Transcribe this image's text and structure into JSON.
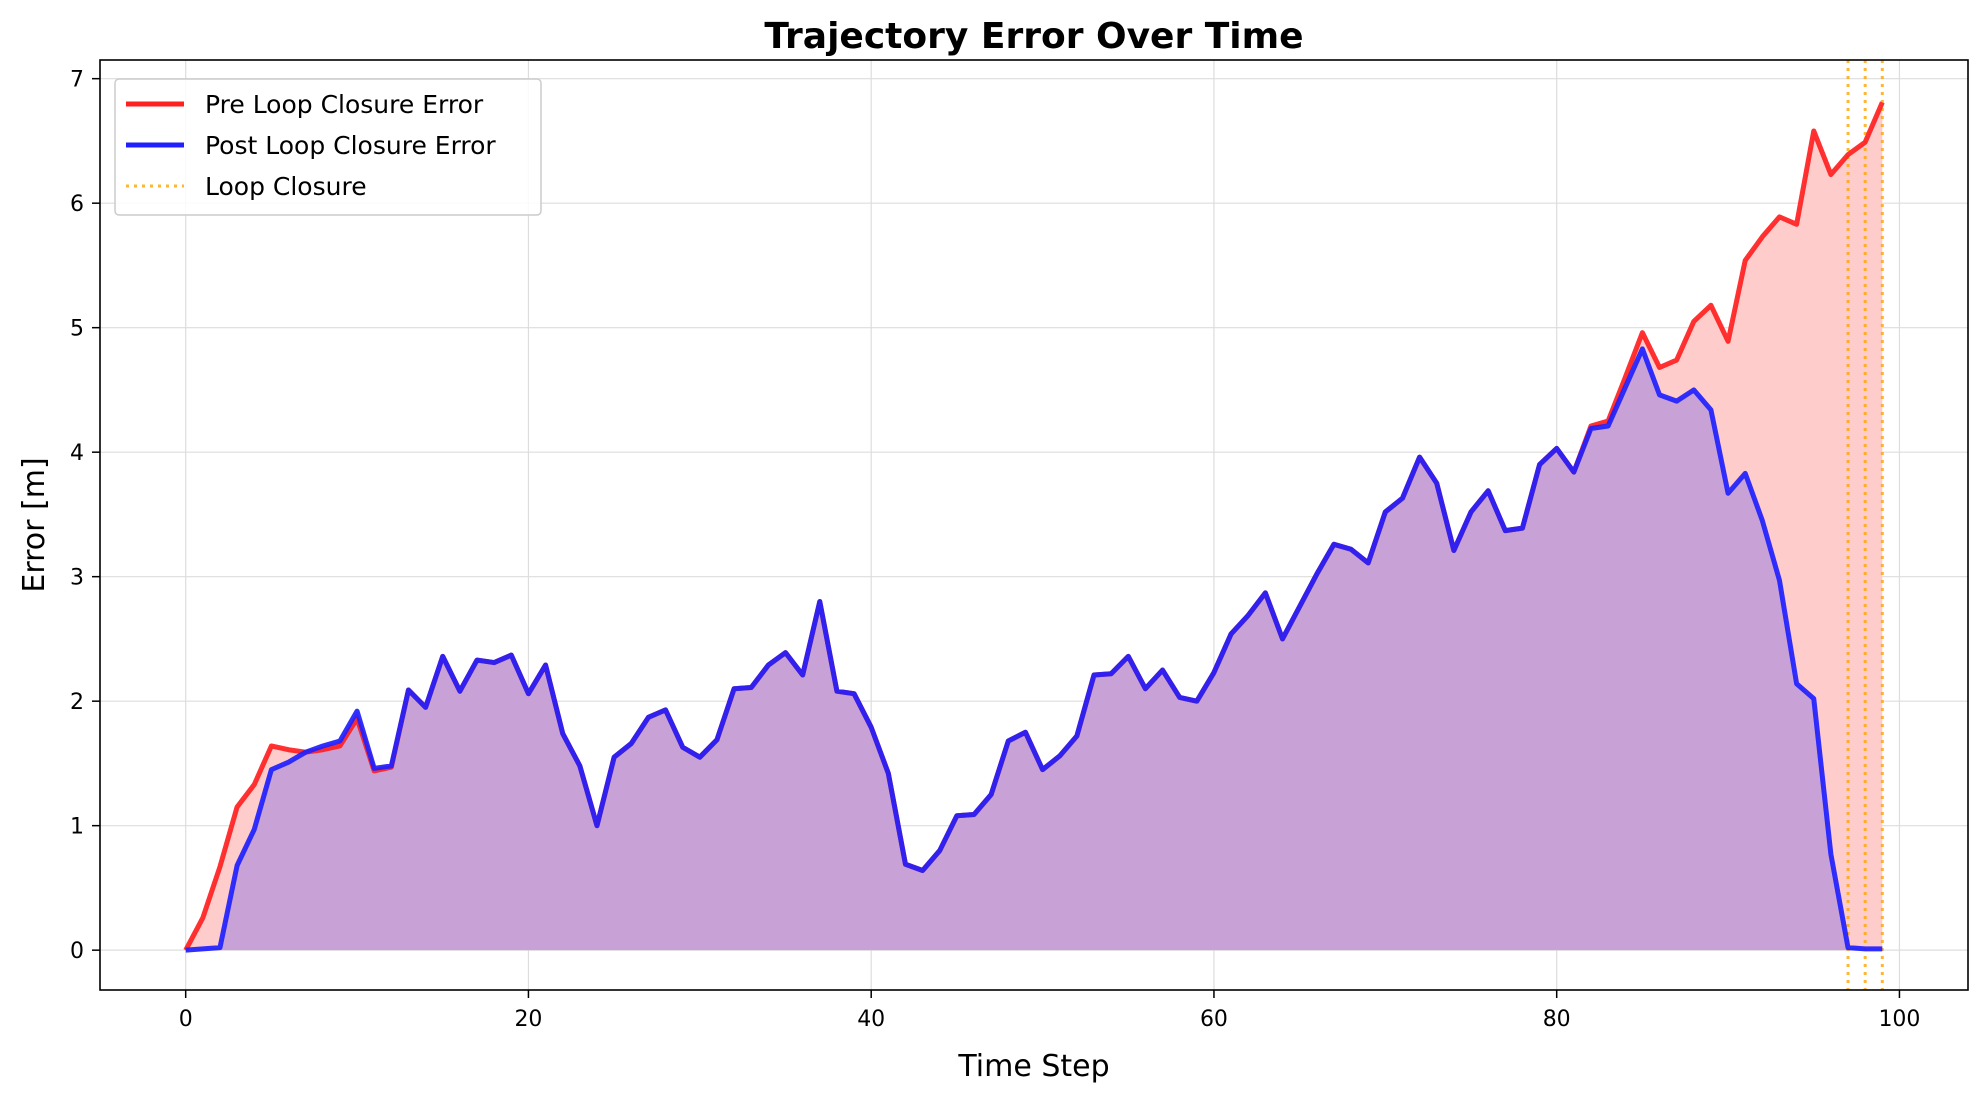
{
  "chart_data": {
    "type": "line",
    "title": "Trajectory Error Over Time",
    "xlabel": "Time Step",
    "ylabel": "Error [m]",
    "xlim": [
      -5,
      104
    ],
    "ylim": [
      -0.32,
      7.15
    ],
    "xticks": [
      0,
      20,
      40,
      60,
      80,
      100
    ],
    "yticks": [
      0,
      1,
      2,
      3,
      4,
      5,
      6,
      7
    ],
    "grid": true,
    "legend_position": "top-left",
    "x": [
      0,
      1,
      2,
      3,
      4,
      5,
      6,
      7,
      8,
      9,
      10,
      11,
      12,
      13,
      14,
      15,
      16,
      17,
      18,
      19,
      20,
      21,
      22,
      23,
      24,
      25,
      26,
      27,
      28,
      29,
      30,
      31,
      32,
      33,
      34,
      35,
      36,
      37,
      38,
      39,
      40,
      41,
      42,
      43,
      44,
      45,
      46,
      47,
      48,
      49,
      50,
      51,
      52,
      53,
      54,
      55,
      56,
      57,
      58,
      59,
      60,
      61,
      62,
      63,
      64,
      65,
      66,
      67,
      68,
      69,
      70,
      71,
      72,
      73,
      74,
      75,
      76,
      77,
      78,
      79,
      80,
      81,
      82,
      83,
      84,
      85,
      86,
      87,
      88,
      89,
      90,
      91,
      92,
      93,
      94,
      95,
      96,
      97,
      98,
      99
    ],
    "series": [
      {
        "name": "Pre Loop Closure Error",
        "color": "#ff2020",
        "fill": "#ffcccc",
        "values": [
          0.0,
          0.26,
          0.67,
          1.15,
          1.33,
          1.64,
          1.61,
          1.59,
          1.61,
          1.64,
          1.86,
          1.44,
          1.47,
          2.09,
          1.95,
          2.36,
          2.08,
          2.33,
          2.31,
          2.37,
          2.06,
          2.29,
          1.74,
          1.48,
          1.0,
          1.55,
          1.66,
          1.87,
          1.93,
          1.63,
          1.55,
          1.69,
          2.1,
          2.11,
          2.29,
          2.39,
          2.21,
          2.8,
          2.08,
          2.06,
          1.79,
          1.42,
          0.69,
          0.64,
          0.8,
          1.08,
          1.09,
          1.25,
          1.68,
          1.75,
          1.45,
          1.56,
          1.72,
          2.21,
          2.22,
          2.36,
          2.1,
          2.25,
          2.03,
          2.0,
          2.23,
          2.54,
          2.69,
          2.87,
          2.5,
          2.76,
          3.02,
          3.26,
          3.22,
          3.11,
          3.52,
          3.63,
          3.96,
          3.75,
          3.21,
          3.52,
          3.69,
          3.37,
          3.39,
          3.9,
          4.03,
          3.84,
          4.21,
          4.25,
          4.6,
          4.96,
          4.68,
          4.74,
          5.05,
          5.18,
          4.89,
          5.54,
          5.73,
          5.89,
          5.83,
          6.58,
          6.23,
          6.39,
          6.49,
          6.81
        ]
      },
      {
        "name": "Post Loop Closure Error",
        "color": "#2020ff",
        "fill": "#c8a2d6",
        "values": [
          0.0,
          0.01,
          0.02,
          0.68,
          0.97,
          1.45,
          1.51,
          1.59,
          1.64,
          1.68,
          1.92,
          1.46,
          1.48,
          2.09,
          1.95,
          2.36,
          2.08,
          2.33,
          2.31,
          2.37,
          2.06,
          2.29,
          1.74,
          1.48,
          1.0,
          1.55,
          1.66,
          1.87,
          1.93,
          1.63,
          1.55,
          1.69,
          2.1,
          2.11,
          2.29,
          2.39,
          2.21,
          2.8,
          2.08,
          2.06,
          1.79,
          1.42,
          0.69,
          0.64,
          0.8,
          1.08,
          1.09,
          1.25,
          1.68,
          1.75,
          1.45,
          1.56,
          1.72,
          2.21,
          2.22,
          2.36,
          2.1,
          2.25,
          2.03,
          2.0,
          2.23,
          2.54,
          2.69,
          2.87,
          2.5,
          2.76,
          3.02,
          3.26,
          3.22,
          3.11,
          3.52,
          3.63,
          3.96,
          3.75,
          3.21,
          3.52,
          3.69,
          3.37,
          3.39,
          3.9,
          4.03,
          3.84,
          4.19,
          4.21,
          4.52,
          4.83,
          4.46,
          4.41,
          4.5,
          4.34,
          3.67,
          3.83,
          3.45,
          2.97,
          2.14,
          2.02,
          0.77,
          0.02,
          0.01,
          0.01
        ]
      }
    ],
    "loop_closures": {
      "name": "Loop Closure",
      "color": "#ffa500",
      "x": [
        97,
        98,
        99
      ]
    }
  }
}
